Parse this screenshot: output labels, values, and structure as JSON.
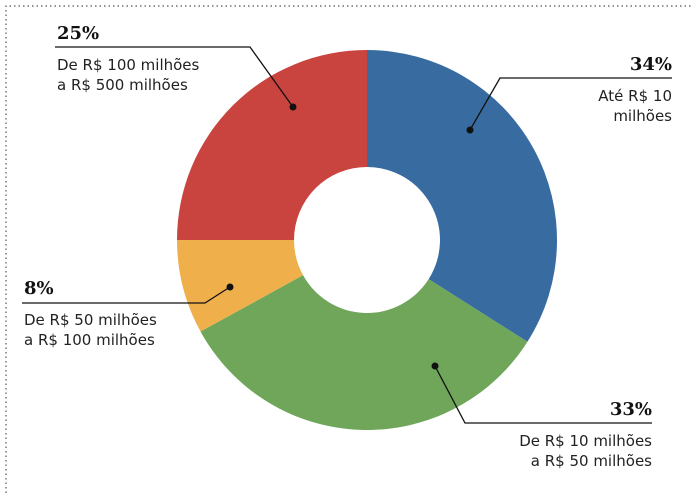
{
  "chart_data": {
    "type": "donut",
    "categories": [
      "Até R$ 10\nmilhões",
      "De R$ 10 milhões\na R$ 50 milhões",
      "De R$ 50 milhões\na R$ 100 milhões",
      "De R$ 100 milhões\na R$ 500 milhões"
    ],
    "values": [
      34,
      33,
      8,
      25
    ],
    "value_labels": [
      "34%",
      "33%",
      "8%",
      "25%"
    ],
    "colors": [
      "#386ba0",
      "#6fa65a",
      "#efb04c",
      "#c9433f"
    ]
  }
}
